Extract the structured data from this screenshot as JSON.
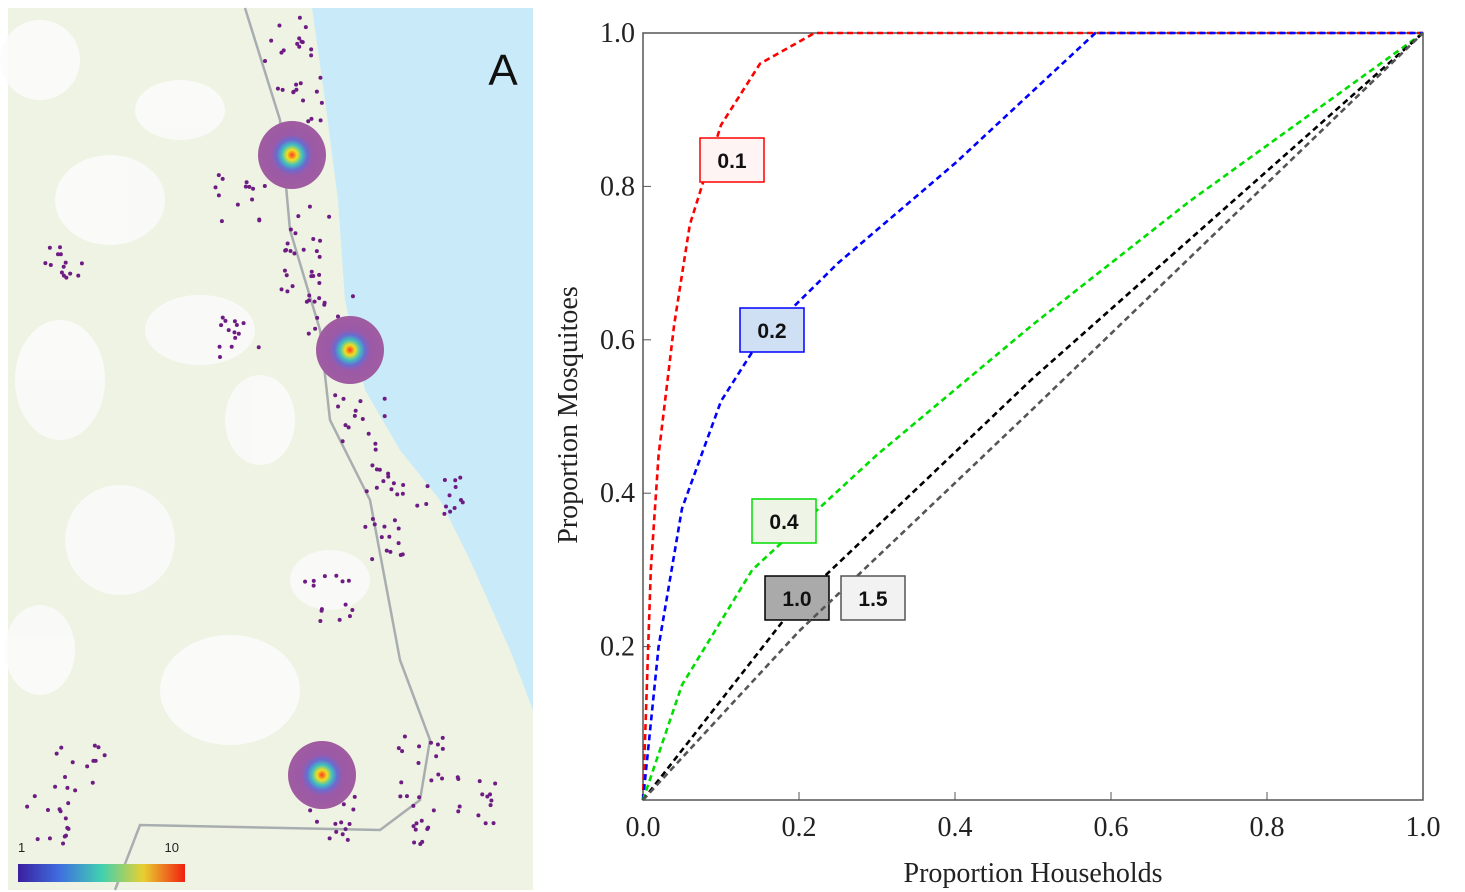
{
  "map": {
    "label": "A",
    "colorbar": {
      "ticks": [
        1,
        10
      ]
    }
  },
  "chart_data": {
    "type": "line",
    "x_label": "Proportion Households",
    "y_label": "Proportion Mosquitoes",
    "xlim": [
      0,
      1
    ],
    "ylim": [
      0,
      1
    ],
    "xticks": [
      {
        "value": 0,
        "label": "0.0"
      },
      {
        "value": 0.2,
        "label": "0.2"
      },
      {
        "value": 0.4,
        "label": "0.4"
      },
      {
        "value": 0.6,
        "label": "0.6"
      },
      {
        "value": 0.8,
        "label": "0.8"
      },
      {
        "value": 1,
        "label": "1.0"
      }
    ],
    "yticks": [
      0.2,
      0.4,
      0.6,
      0.8,
      {
        "value": 1,
        "label": "1.0"
      }
    ],
    "series": [
      {
        "name": "0.1",
        "color": "#ff0000",
        "x": [
          0,
          0.01,
          0.02,
          0.04,
          0.06,
          0.1,
          0.15,
          0.22,
          1
        ],
        "values": [
          0,
          0.3,
          0.45,
          0.62,
          0.75,
          0.88,
          0.96,
          1,
          1
        ]
      },
      {
        "name": "0.2",
        "color": "#0000ff",
        "x": [
          0,
          0.02,
          0.05,
          0.1,
          0.15,
          0.25,
          0.4,
          0.58,
          1
        ],
        "values": [
          0,
          0.2,
          0.38,
          0.52,
          0.6,
          0.7,
          0.83,
          1,
          1
        ]
      },
      {
        "name": "0.4",
        "color": "#00dd00",
        "x": [
          0,
          0.05,
          0.14,
          0.3,
          0.5,
          0.7,
          1
        ],
        "values": [
          0,
          0.15,
          0.3,
          0.45,
          0.62,
          0.78,
          1
        ]
      },
      {
        "name": "1.0",
        "color": "#000000",
        "x": [
          0,
          0.2,
          0.5,
          1
        ],
        "values": [
          0,
          0.26,
          0.55,
          1
        ]
      },
      {
        "name": "1.5",
        "color": "#555555",
        "x": [
          0,
          0.2,
          0.5,
          1
        ],
        "values": [
          0,
          0.22,
          0.51,
          1
        ]
      }
    ]
  }
}
